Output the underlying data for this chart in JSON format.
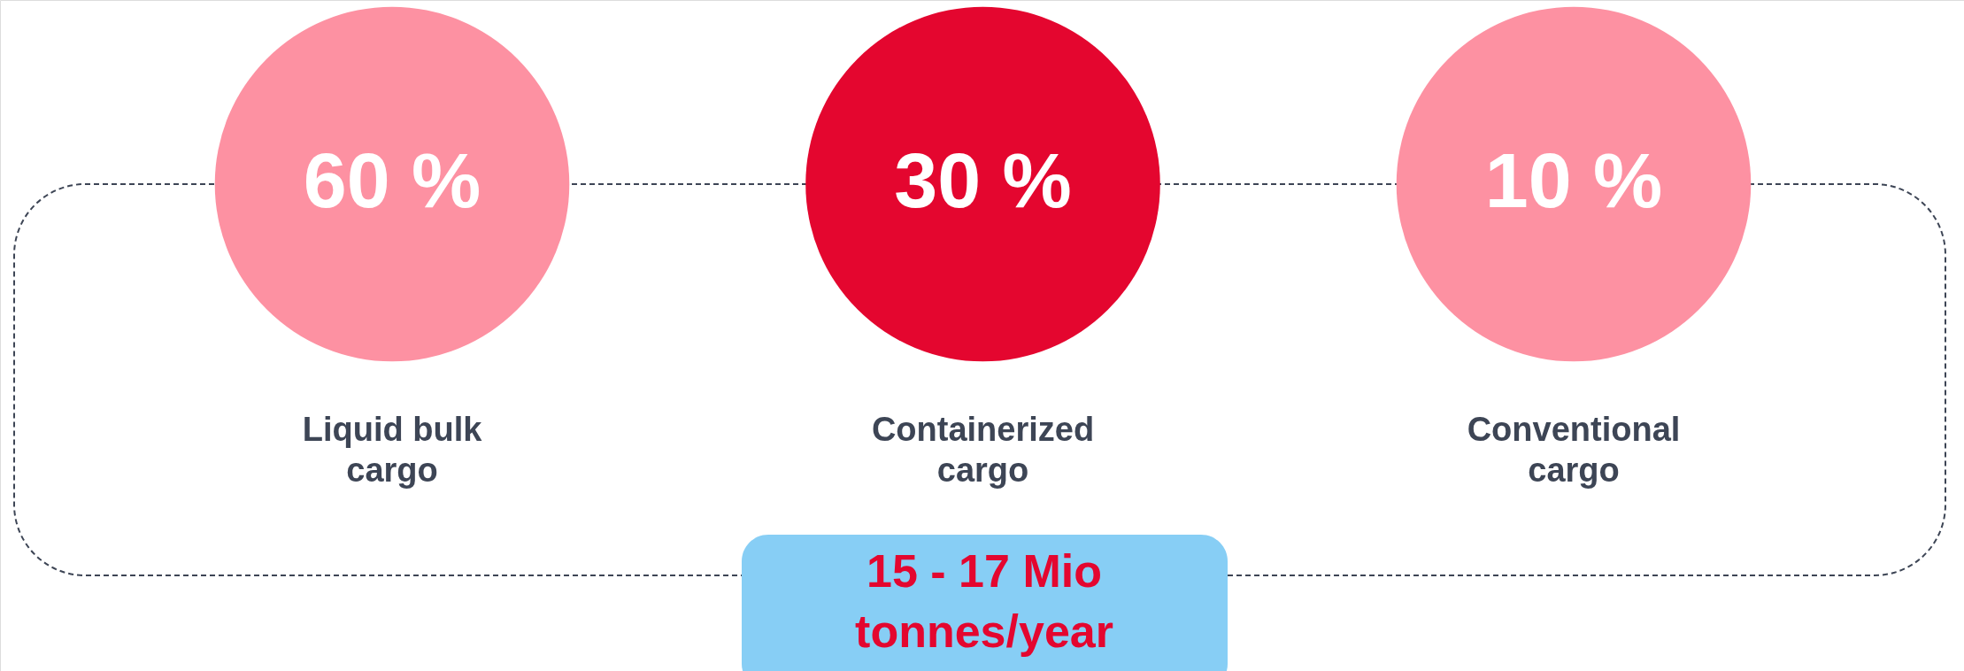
{
  "chart_data": {
    "type": "other",
    "categories": [
      "Liquid bulk cargo",
      "Containerized cargo",
      "Conventional cargo"
    ],
    "values": [
      60,
      30,
      10
    ],
    "value_labels": [
      "60 %",
      "30 %",
      "10 %"
    ],
    "colors": [
      "#fd91a2",
      "#e4062f",
      "#fd91a2"
    ],
    "annotations": [
      "15 - 17 Mio tonnes/year"
    ]
  }
}
